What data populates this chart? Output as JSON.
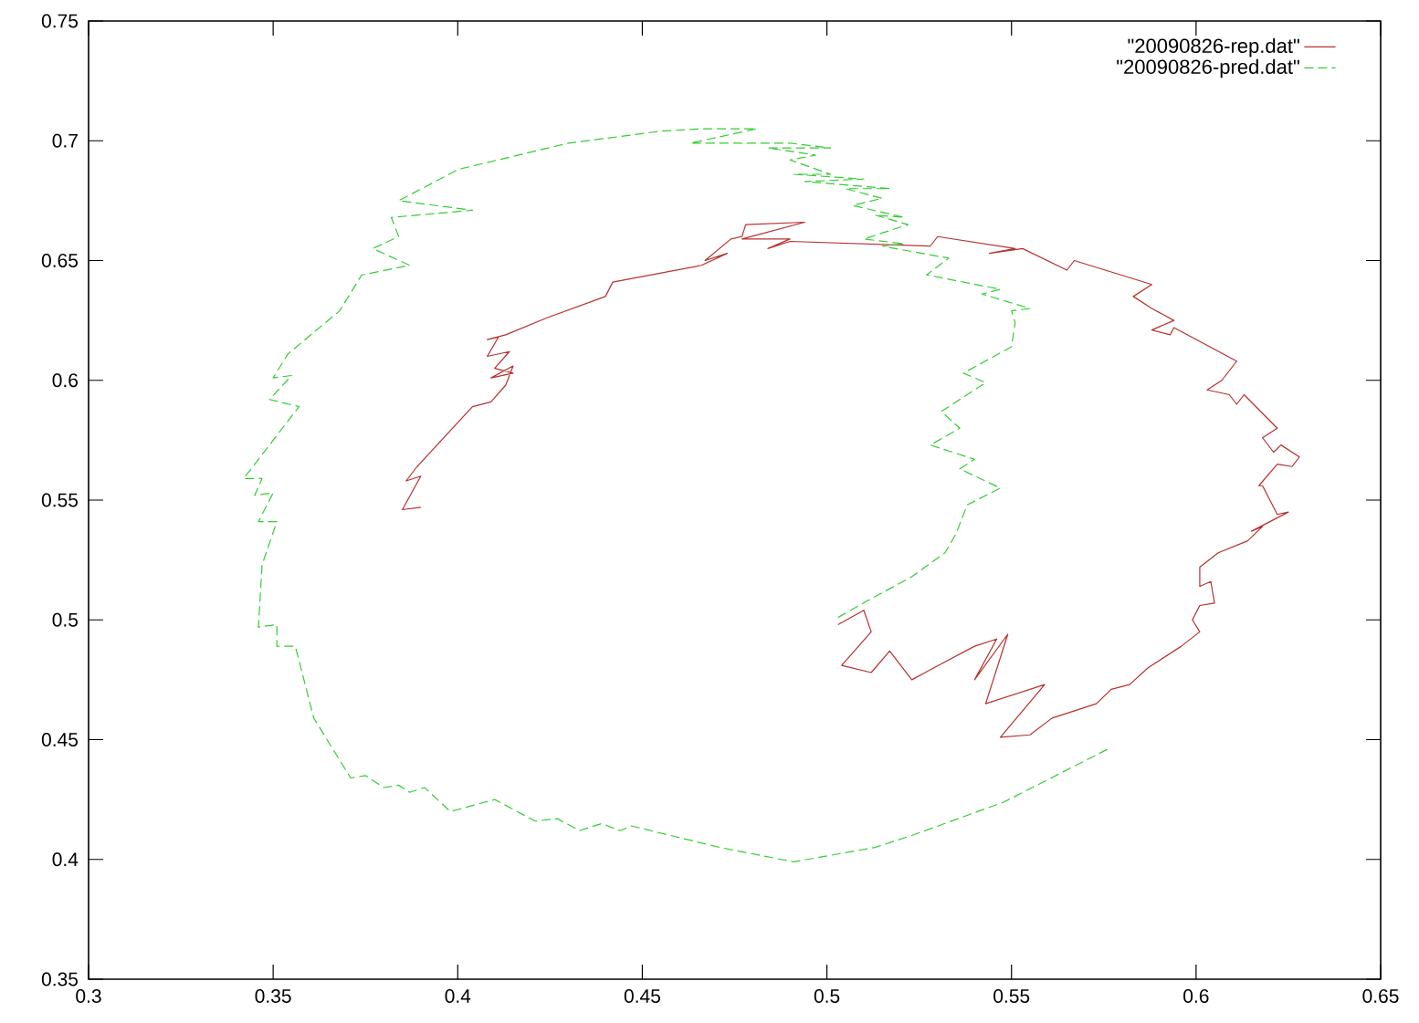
{
  "chart_data": {
    "type": "line",
    "xlim": [
      0.3,
      0.65
    ],
    "ylim": [
      0.35,
      0.75
    ],
    "xticks": [
      0.3,
      0.35,
      0.4,
      0.45,
      0.5,
      0.55,
      0.6,
      0.65
    ],
    "yticks": [
      0.35,
      0.4,
      0.45,
      0.5,
      0.55,
      0.6,
      0.65,
      0.7,
      0.75
    ],
    "grid": false,
    "legend": "top right",
    "marker": "none",
    "series": [
      {
        "name": "\"20090826-rep.dat\"",
        "color": "#b83030",
        "line_style": "solid",
        "x": [
          0.39,
          0.385,
          0.39,
          0.386,
          0.389,
          0.404,
          0.409,
          0.413,
          0.415,
          0.409,
          0.415,
          0.41,
          0.414,
          0.408,
          0.411,
          0.408,
          0.413,
          0.424,
          0.44,
          0.442,
          0.466,
          0.473,
          0.467,
          0.474,
          0.477,
          0.478,
          0.494,
          0.477,
          0.49,
          0.484,
          0.49,
          0.528,
          0.53,
          0.551,
          0.544,
          0.553,
          0.565,
          0.567,
          0.588,
          0.583,
          0.588,
          0.594,
          0.588,
          0.593,
          0.594,
          0.611,
          0.607,
          0.603,
          0.609,
          0.611,
          0.613,
          0.622,
          0.618,
          0.621,
          0.623,
          0.628,
          0.626,
          0.622,
          0.617,
          0.618,
          0.622,
          0.625,
          0.615,
          0.618,
          0.614,
          0.606,
          0.601,
          0.601,
          0.604,
          0.605,
          0.601,
          0.599,
          0.601,
          0.596,
          0.587,
          0.582,
          0.577,
          0.573,
          0.561,
          0.555,
          0.547,
          0.559,
          0.543,
          0.549,
          0.54,
          0.546,
          0.54,
          0.529,
          0.523,
          0.517,
          0.512,
          0.504,
          0.512,
          0.51,
          0.503
        ],
        "values": [
          0.547,
          0.546,
          0.56,
          0.558,
          0.564,
          0.589,
          0.591,
          0.598,
          0.606,
          0.601,
          0.603,
          0.605,
          0.612,
          0.61,
          0.618,
          0.617,
          0.619,
          0.626,
          0.635,
          0.641,
          0.648,
          0.653,
          0.65,
          0.659,
          0.66,
          0.665,
          0.666,
          0.659,
          0.659,
          0.655,
          0.658,
          0.656,
          0.66,
          0.655,
          0.653,
          0.655,
          0.646,
          0.65,
          0.64,
          0.635,
          0.63,
          0.625,
          0.621,
          0.619,
          0.622,
          0.608,
          0.6,
          0.596,
          0.594,
          0.59,
          0.594,
          0.58,
          0.576,
          0.57,
          0.573,
          0.568,
          0.564,
          0.565,
          0.556,
          0.556,
          0.544,
          0.545,
          0.537,
          0.539,
          0.533,
          0.528,
          0.522,
          0.514,
          0.516,
          0.507,
          0.506,
          0.5,
          0.495,
          0.489,
          0.48,
          0.473,
          0.471,
          0.465,
          0.459,
          0.452,
          0.451,
          0.473,
          0.465,
          0.494,
          0.475,
          0.492,
          0.489,
          0.48,
          0.475,
          0.487,
          0.478,
          0.481,
          0.495,
          0.504,
          0.498
        ]
      },
      {
        "name": "\"20090826-pred.dat\"",
        "color": "#33cc33",
        "line_style": "dashed",
        "x": [
          0.503,
          0.511,
          0.523,
          0.532,
          0.535,
          0.538,
          0.547,
          0.536,
          0.54,
          0.528,
          0.536,
          0.531,
          0.543,
          0.537,
          0.55,
          0.551,
          0.55,
          0.555,
          0.542,
          0.547,
          0.527,
          0.533,
          0.515,
          0.521,
          0.51,
          0.522,
          0.513,
          0.521,
          0.507,
          0.515,
          0.505,
          0.517,
          0.494,
          0.51,
          0.491,
          0.501,
          0.49,
          0.497,
          0.484,
          0.501,
          0.49,
          0.463,
          0.481,
          0.466,
          0.455,
          0.43,
          0.4,
          0.394,
          0.384,
          0.404,
          0.382,
          0.384,
          0.377,
          0.387,
          0.374,
          0.368,
          0.354,
          0.35,
          0.355,
          0.349,
          0.357,
          0.342,
          0.347,
          0.345,
          0.35,
          0.346,
          0.351,
          0.347,
          0.346,
          0.351,
          0.351,
          0.356,
          0.361,
          0.371,
          0.375,
          0.38,
          0.384,
          0.387,
          0.391,
          0.398,
          0.41,
          0.421,
          0.427,
          0.433,
          0.439,
          0.444,
          0.447,
          0.471,
          0.491,
          0.513,
          0.523,
          0.548,
          0.576
        ],
        "values": [
          0.501,
          0.508,
          0.518,
          0.528,
          0.536,
          0.548,
          0.555,
          0.563,
          0.567,
          0.573,
          0.58,
          0.587,
          0.599,
          0.603,
          0.614,
          0.624,
          0.629,
          0.63,
          0.636,
          0.638,
          0.644,
          0.651,
          0.656,
          0.657,
          0.659,
          0.665,
          0.669,
          0.668,
          0.673,
          0.676,
          0.68,
          0.68,
          0.683,
          0.684,
          0.686,
          0.686,
          0.692,
          0.694,
          0.697,
          0.697,
          0.699,
          0.699,
          0.705,
          0.705,
          0.704,
          0.699,
          0.688,
          0.683,
          0.675,
          0.671,
          0.668,
          0.66,
          0.655,
          0.648,
          0.644,
          0.629,
          0.611,
          0.601,
          0.602,
          0.592,
          0.589,
          0.559,
          0.559,
          0.552,
          0.553,
          0.541,
          0.541,
          0.523,
          0.497,
          0.498,
          0.489,
          0.489,
          0.459,
          0.434,
          0.435,
          0.43,
          0.431,
          0.428,
          0.43,
          0.42,
          0.425,
          0.416,
          0.417,
          0.412,
          0.415,
          0.412,
          0.414,
          0.405,
          0.399,
          0.405,
          0.41,
          0.424,
          0.446
        ]
      }
    ]
  }
}
